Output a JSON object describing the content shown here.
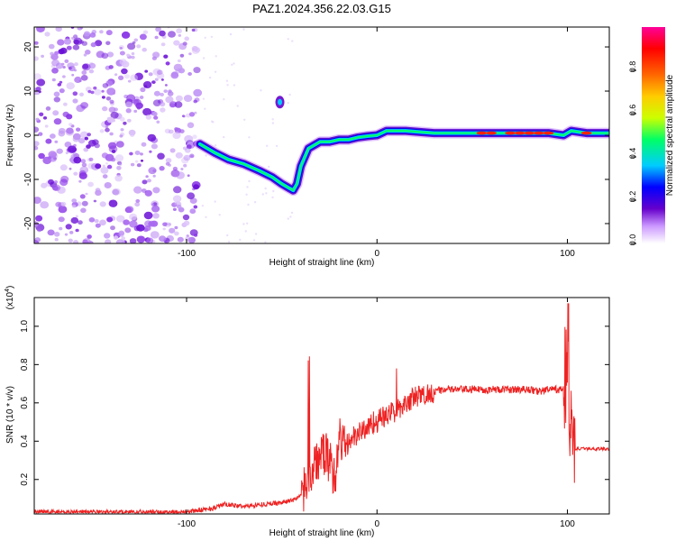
{
  "title": "PAZ1.2024.356.22.03.G15",
  "chart_data": [
    {
      "type": "heatmap",
      "xlabel": "Height of straight line (km)",
      "ylabel": "Frequency (Hz)",
      "xlim": [
        -180,
        122
      ],
      "ylim": [
        -24.5,
        24.5
      ],
      "x_ticks": [
        -100,
        0,
        100
      ],
      "y_ticks": [
        -20,
        -10,
        0,
        10,
        20
      ],
      "colorbar": {
        "label": "Normalized spectral amplitude",
        "range": [
          0,
          1
        ],
        "ticks": [
          0.0,
          0.2,
          0.4,
          0.6,
          0.8
        ],
        "colors": [
          "#ffffff",
          "#cc99ff",
          "#6600cc",
          "#0000ff",
          "#00ccff",
          "#00ff66",
          "#ccff00",
          "#ffcc00",
          "#ff6600",
          "#ff0000",
          "#ff0099"
        ]
      },
      "ridge": {
        "x": [
          -93,
          -85,
          -78,
          -70,
          -62,
          -55,
          -50,
          -46,
          -44,
          -42,
          -40,
          -36,
          -30,
          -25,
          -20,
          -15,
          -10,
          -5,
          0,
          5,
          15,
          30,
          50,
          70,
          90,
          98,
          102,
          110,
          122
        ],
        "y": [
          -2,
          -4,
          -5.5,
          -6.5,
          -8,
          -9.5,
          -11,
          -12,
          -12.5,
          -11,
          -7,
          -3,
          -1.5,
          -1.5,
          -1,
          -1,
          -0.5,
          -0.2,
          0,
          1,
          1,
          0.5,
          0.5,
          0.5,
          0.5,
          0,
          1,
          0.5,
          0.5
        ]
      }
    },
    {
      "type": "line",
      "xlabel": "Height of straight line (km)",
      "ylabel": "SNR (10 * v/v)",
      "yscale_label": "(x10",
      "yscale_exp": "4",
      "yscale_close": ")",
      "xlim": [
        -180,
        122
      ],
      "ylim": [
        0.02,
        1.15
      ],
      "x_ticks": [
        -100,
        0,
        100
      ],
      "y_ticks": [
        0.2,
        0.4,
        0.6,
        0.8,
        1.0
      ],
      "color": "#ee2222",
      "series": [
        {
          "x": [
            -180,
            -140,
            -100,
            -86,
            -80,
            -70,
            -60,
            -50,
            -45,
            -40,
            -38,
            -35,
            -33,
            -30,
            -28,
            -25,
            -22,
            -20,
            -17,
            -15,
            -12,
            -10,
            -7,
            -5,
            -2,
            0,
            2,
            5,
            8,
            10,
            12,
            15,
            20,
            25,
            30,
            35,
            40,
            50,
            60,
            70,
            80,
            85,
            90,
            95,
            98,
            100,
            102,
            104,
            106,
            110,
            115,
            122
          ],
          "y": [
            0.03,
            0.03,
            0.03,
            0.05,
            0.07,
            0.06,
            0.07,
            0.08,
            0.09,
            0.11,
            0.16,
            0.22,
            0.28,
            0.3,
            0.34,
            0.3,
            0.2,
            0.42,
            0.38,
            0.4,
            0.42,
            0.44,
            0.46,
            0.47,
            0.5,
            0.5,
            0.52,
            0.53,
            0.55,
            0.56,
            0.58,
            0.6,
            0.63,
            0.64,
            0.66,
            0.67,
            0.67,
            0.67,
            0.67,
            0.67,
            0.67,
            0.66,
            0.67,
            0.67,
            0.67,
            0.8,
            0.4,
            0.36,
            0.36,
            0.36,
            0.36,
            0.36
          ]
        }
      ]
    }
  ]
}
